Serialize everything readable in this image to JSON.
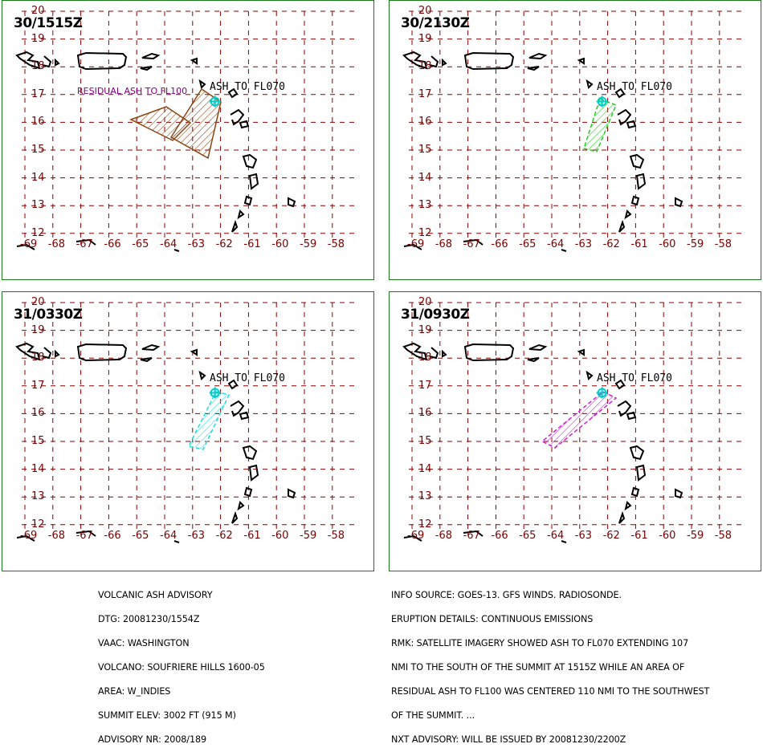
{
  "panels": [
    {
      "title": "30/1515Z",
      "ash_label": "ASH TO FL070",
      "extra_label": "RESIDUAL ASH TO FL100",
      "polygon_color": "#8b4513"
    },
    {
      "title": "30/2130Z",
      "ash_label": "ASH TO FL070",
      "extra_label": "",
      "polygon_color": "#22cc22"
    },
    {
      "title": "31/0330Z",
      "ash_label": "ASH TO FL070",
      "extra_label": "",
      "polygon_color": "#22dddd"
    },
    {
      "title": "31/0930Z",
      "ash_label": "ASH TO FL070",
      "extra_label": "",
      "polygon_color": "#cc22cc"
    }
  ],
  "grid": {
    "lon_labels": [
      "-69",
      "-68",
      "-67",
      "-66",
      "-65",
      "-64",
      "-63",
      "-62",
      "-61",
      "-60",
      "-59",
      "-58"
    ],
    "lat_labels": [
      "20",
      "19",
      "18",
      "17",
      "16",
      "15",
      "14",
      "13",
      "12"
    ],
    "line_color": "#8b0000"
  },
  "advisory_left": [
    "VOLCANIC ASH ADVISORY",
    "DTG: 20081230/1554Z",
    "VAAC: WASHINGTON",
    "VOLCANO: SOUFRIERE HILLS 1600-05",
    "AREA: W_INDIES",
    "SUMMIT ELEV: 3002 FT (915 M)",
    "ADVISORY NR: 2008/189"
  ],
  "advisory_right": [
    "INFO SOURCE: GOES-13. GFS WINDS. RADIOSONDE.",
    "ERUPTION DETAILS: CONTINUOUS EMISSIONS",
    "RMK: SATELLITE IMAGERY SHOWED ASH TO FL070 EXTENDING 107",
    "NMI TO THE SOUTH OF THE SUMMIT AT 1515Z WHILE AN AREA OF",
    "RESIDUAL ASH TO FL100 WAS CENTERED 110 NMI TO THE SOUTHWEST",
    "OF THE SUMMIT. ...",
    "NXT ADVISORY: WILL BE ISSUED BY 20081230/2200Z"
  ]
}
